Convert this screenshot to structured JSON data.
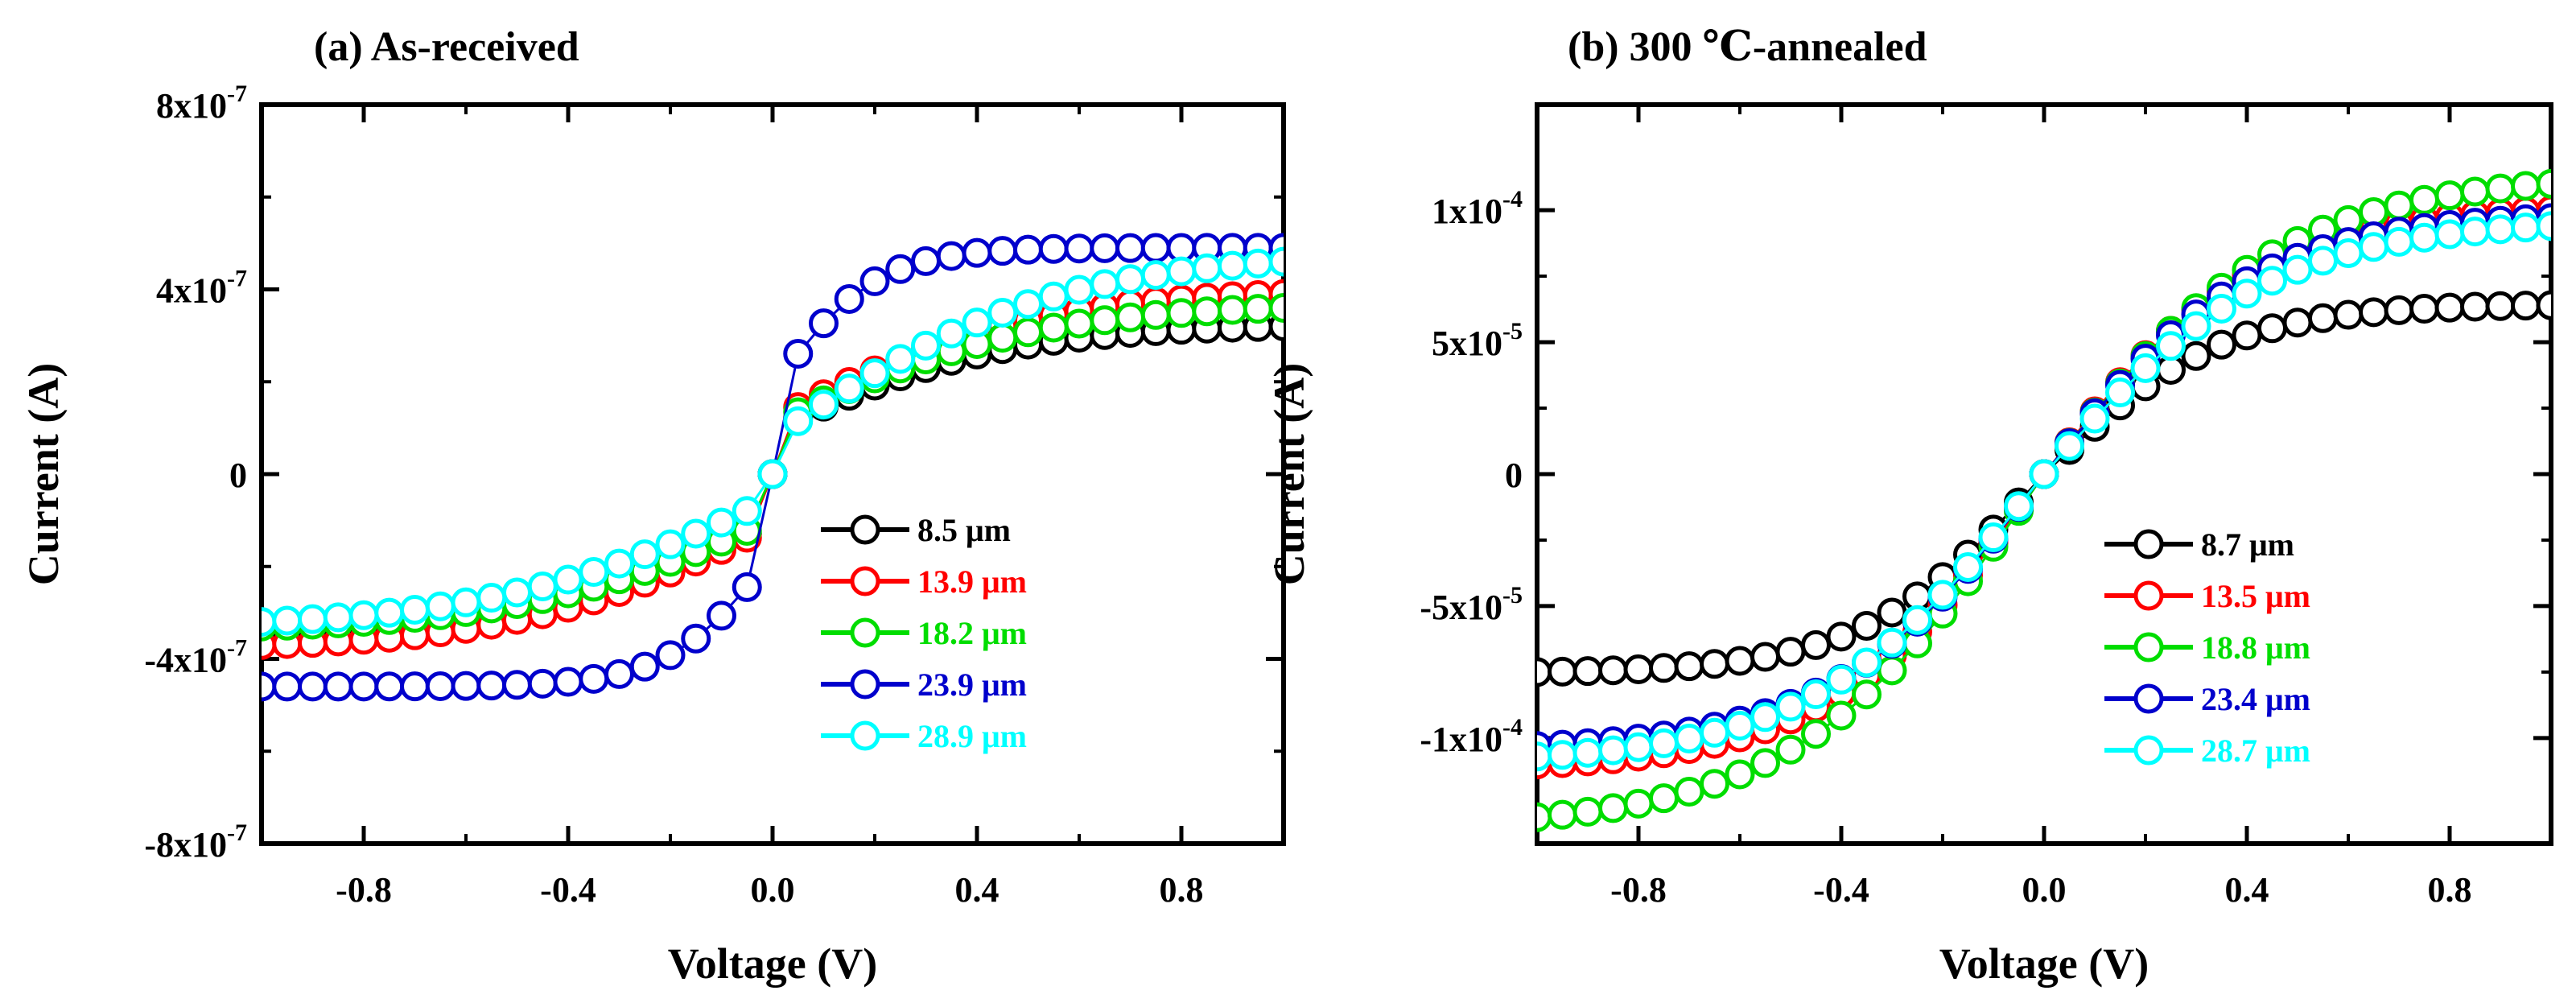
{
  "chart_data": [
    {
      "type": "scatter",
      "title": "(a) As-received",
      "xlabel": "Voltage (V)",
      "ylabel": "Current  (A)",
      "xlim": [
        -1.0,
        1.0
      ],
      "ylim": [
        -8e-07,
        8e-07
      ],
      "xticks": [
        -0.8,
        -0.4,
        0.0,
        0.4,
        0.8
      ],
      "xtick_labels": [
        "-0.8",
        "-0.4",
        "0.0",
        "0.4",
        "0.8"
      ],
      "yticks": [
        -8e-07,
        -4e-07,
        0,
        4e-07,
        8e-07
      ],
      "ytick_labels": [
        {
          "base": "-8x10",
          "exp": "-7"
        },
        {
          "base": "-4x10",
          "exp": "-7"
        },
        {
          "base": "0",
          "exp": ""
        },
        {
          "base": "4x10",
          "exp": "-7"
        },
        {
          "base": "8x10",
          "exp": "-7"
        }
      ],
      "legend_position": "lower-right",
      "series": [
        {
          "name": "8.5 μm",
          "color": "#000000",
          "shape": "sigmoid",
          "neg": -3.4e-07,
          "pos": 3.2e-07,
          "scale": 0.45,
          "jump": 0.3
        },
        {
          "name": "13.9 μm",
          "color": "#ff0000",
          "shape": "sigmoid",
          "neg": -3.7e-07,
          "pos": 3.9e-07,
          "scale": 0.5,
          "jump": 0.3
        },
        {
          "name": "18.2 μm",
          "color": "#00dd00",
          "shape": "sigmoid",
          "neg": -3.3e-07,
          "pos": 3.6e-07,
          "scale": 0.5,
          "jump": 0.3
        },
        {
          "name": "23.9 μm",
          "color": "#0000cc",
          "shape": "sigmoid",
          "neg": -4.6e-07,
          "pos": 4.9e-07,
          "scale": 0.2,
          "jump": 0.38
        },
        {
          "name": "28.9 μm",
          "color": "#00ffff",
          "shape": "sigmoid",
          "neg": -3.2e-07,
          "pos": 4.6e-07,
          "scale": 0.55,
          "jump": 0.17
        }
      ]
    },
    {
      "type": "scatter",
      "title": "(b) 300 ℃-annealed",
      "xlabel": "Voltage (V)",
      "ylabel": "Current  (A)",
      "xlim": [
        -1.0,
        1.0
      ],
      "ylim": [
        -0.00014,
        0.00014
      ],
      "xticks": [
        -0.8,
        -0.4,
        0.0,
        0.4,
        0.8
      ],
      "xtick_labels": [
        "-0.8",
        "-0.4",
        "0.0",
        "0.4",
        "0.8"
      ],
      "yticks": [
        -0.0001,
        -5e-05,
        0,
        5e-05,
        0.0001
      ],
      "ytick_labels": [
        {
          "base": "-1x10",
          "exp": "-4"
        },
        {
          "base": "-5x10",
          "exp": "-5"
        },
        {
          "base": "0",
          "exp": ""
        },
        {
          "base": "5x10",
          "exp": "-5"
        },
        {
          "base": "1x10",
          "exp": "-4"
        }
      ],
      "legend_position": "lower-right",
      "series": [
        {
          "name": "8.7 μm",
          "color": "#000000",
          "shape": "tanh",
          "neg": -7.5e-05,
          "pos": 6.4e-05,
          "scale": 0.35
        },
        {
          "name": "13.5 μm",
          "color": "#ff0000",
          "shape": "tanh",
          "neg": -0.00011,
          "pos": 0.0001,
          "scale": 0.42
        },
        {
          "name": "18.8 μm",
          "color": "#00dd00",
          "shape": "tanh",
          "neg": -0.00013,
          "pos": 0.00011,
          "scale": 0.48
        },
        {
          "name": "23.4 μm",
          "color": "#0000cc",
          "shape": "tanh",
          "neg": -0.000103,
          "pos": 9.7e-05,
          "scale": 0.42
        },
        {
          "name": "28.7 μm",
          "color": "#00ffff",
          "shape": "tanh",
          "neg": -0.000107,
          "pos": 9.4e-05,
          "scale": 0.45
        }
      ]
    }
  ]
}
